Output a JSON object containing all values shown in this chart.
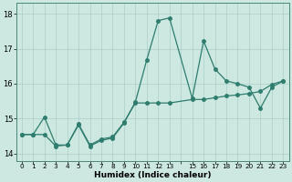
{
  "xlabel": "Humidex (Indice chaleur)",
  "bg_color": "#cce8e0",
  "line_color": "#2e7d6e",
  "grid_color": "#aacfc8",
  "ylim": [
    13.8,
    18.3
  ],
  "xlim": [
    -0.5,
    23.5
  ],
  "yticks": [
    14,
    15,
    16,
    17,
    18
  ],
  "xtick_labels": [
    "0",
    "1",
    "2",
    "3",
    "4",
    "5",
    "6",
    "7",
    "8",
    "9",
    "10",
    "11",
    "12",
    "13",
    "",
    "15",
    "16",
    "17",
    "18",
    "19",
    "20",
    "21",
    "22",
    "23"
  ],
  "series1_x": [
    0,
    1,
    2,
    3,
    4,
    5,
    6,
    7,
    8,
    9,
    10,
    11,
    12,
    13,
    15,
    16,
    17,
    18,
    19,
    20,
    21,
    22,
    23
  ],
  "series1_y": [
    14.55,
    14.55,
    15.05,
    14.25,
    14.25,
    14.85,
    14.25,
    14.42,
    14.48,
    14.9,
    15.45,
    15.45,
    15.45,
    15.45,
    15.55,
    15.55,
    15.6,
    15.65,
    15.68,
    15.72,
    15.78,
    15.98,
    16.08
  ],
  "series2_x": [
    0,
    1,
    2,
    3,
    4,
    5,
    6,
    7,
    8,
    9,
    10,
    11,
    12,
    13,
    15,
    16,
    17,
    18,
    19,
    20,
    21,
    22,
    23
  ],
  "series2_y": [
    14.55,
    14.55,
    14.55,
    14.22,
    14.25,
    14.82,
    14.22,
    14.38,
    14.45,
    14.88,
    15.48,
    16.68,
    17.8,
    17.88,
    15.58,
    17.22,
    16.42,
    16.08,
    16.0,
    15.9,
    15.3,
    15.9,
    16.08
  ],
  "marker_size": 2.5,
  "linewidth": 0.9
}
